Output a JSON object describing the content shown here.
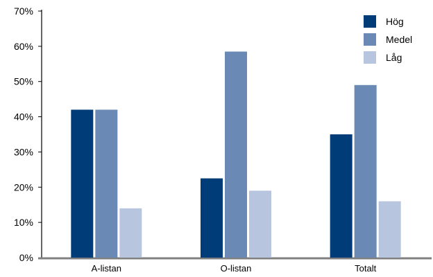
{
  "chart_data": {
    "type": "bar",
    "title": "",
    "xlabel": "",
    "ylabel": "",
    "categories": [
      "A-listan",
      "O-listan",
      "Totalt"
    ],
    "series": [
      {
        "name": "Hög",
        "values": [
          42,
          22.5,
          35
        ],
        "color": "#003c78"
      },
      {
        "name": "Medel",
        "values": [
          42,
          58.5,
          49
        ],
        "color": "#6a8ab5"
      },
      {
        "name": "Låg",
        "values": [
          14,
          19,
          16
        ],
        "color": "#b8c5de"
      }
    ],
    "ylim": [
      0,
      70
    ],
    "yticks": [
      0,
      10,
      20,
      30,
      40,
      50,
      60,
      70
    ],
    "ytick_labels": [
      "0%",
      "10%",
      "20%",
      "30%",
      "40%",
      "50%",
      "60%",
      "70%"
    ],
    "grid": false,
    "legend_position": "top-right",
    "axis_color": "#808080"
  }
}
